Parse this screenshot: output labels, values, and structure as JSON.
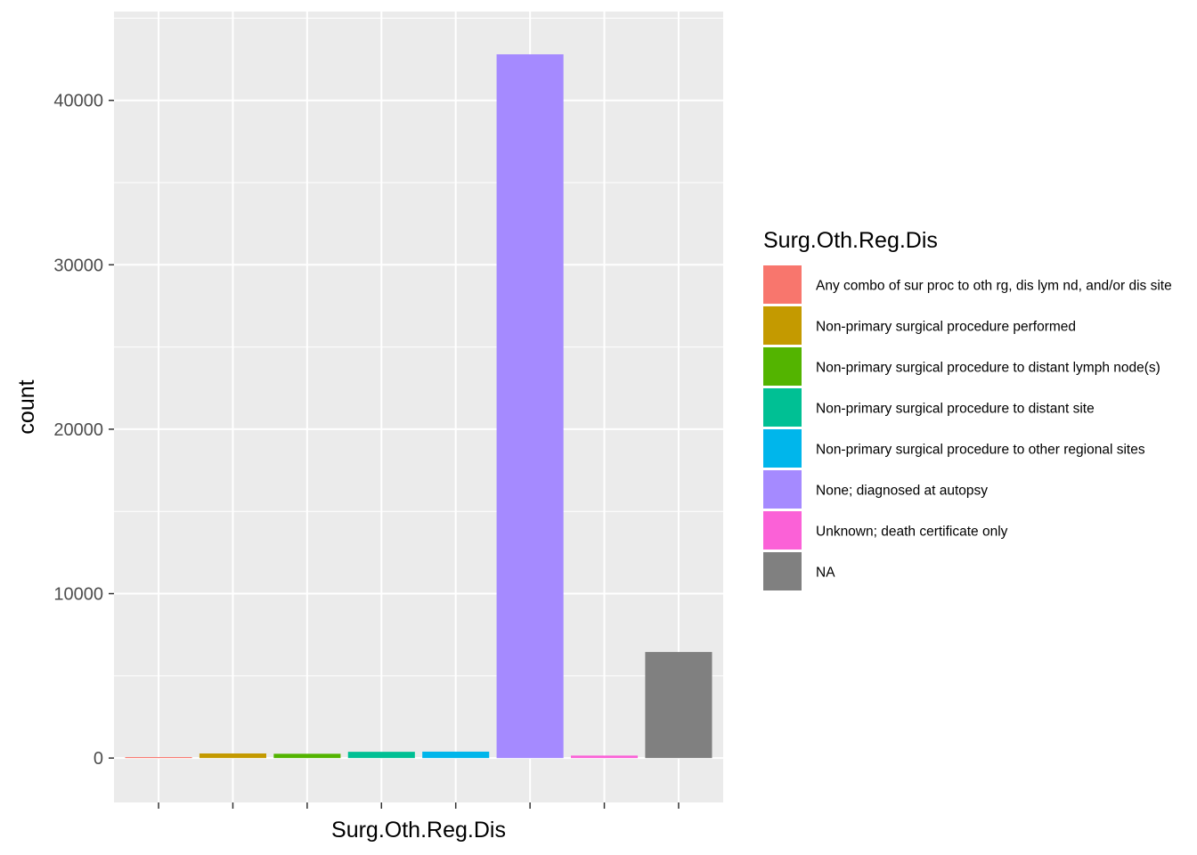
{
  "chart_data": {
    "type": "bar",
    "xlabel": "Surg.Oth.Reg.Dis",
    "ylabel": "count",
    "ylim": [
      -2700,
      45400
    ],
    "yticks": [
      0,
      10000,
      20000,
      30000,
      40000
    ],
    "ytick_labels": [
      "0",
      "10000",
      "20000",
      "30000",
      "40000"
    ],
    "grid": true,
    "legend_placement": "right",
    "legend_title": "Surg.Oth.Reg.Dis",
    "categories": [
      "Any combo of sur proc to oth rg, dis lym nd, and/or dis site",
      "Non-primary surgical procedure performed",
      "Non-primary surgical procedure to distant lymph node(s)",
      "Non-primary surgical procedure to distant site",
      "Non-primary surgical procedure to other regional sites",
      "None; diagnosed at autopsy",
      "Unknown; death certificate only",
      "NA"
    ],
    "values": [
      60,
      280,
      260,
      380,
      390,
      42800,
      150,
      6450
    ],
    "colors": [
      "#F8766D",
      "#C49A00",
      "#53B400",
      "#00C094",
      "#00B6EB",
      "#A58AFF",
      "#FB61D7",
      "#808080"
    ]
  }
}
